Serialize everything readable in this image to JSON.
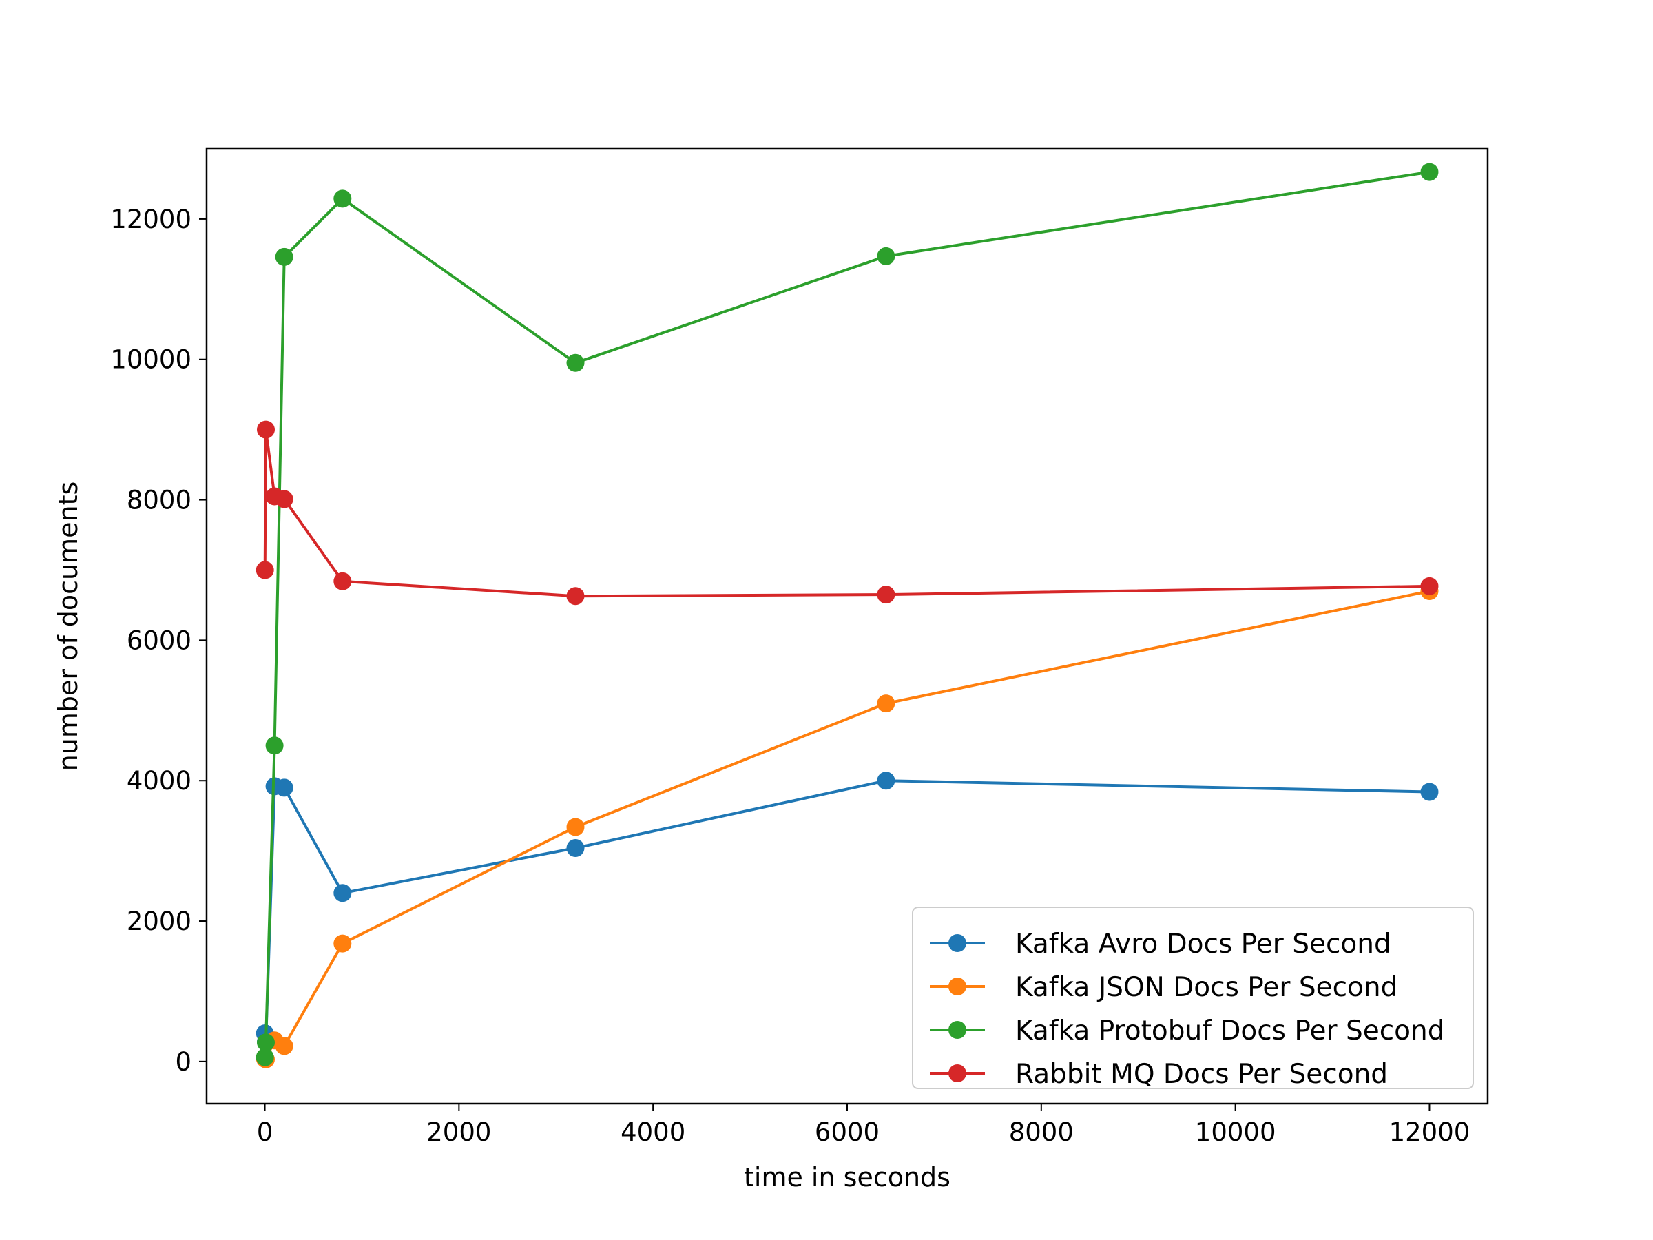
{
  "chart_data": {
    "type": "line",
    "title": "",
    "xlabel": "time in seconds",
    "ylabel": "number of documents",
    "xlim": [
      -600,
      12600
    ],
    "ylim": [
      -600,
      13000
    ],
    "xticks": [
      0,
      2000,
      4000,
      6000,
      8000,
      10000,
      12000
    ],
    "xtick_labels": [
      "0",
      "2000",
      "4000",
      "6000",
      "8000",
      "10000",
      "12000"
    ],
    "yticks": [
      0,
      2000,
      4000,
      6000,
      8000,
      10000,
      12000
    ],
    "ytick_labels": [
      "0",
      "2000",
      "4000",
      "6000",
      "8000",
      "10000",
      "12000"
    ],
    "grid": false,
    "legend_position": "lower-right",
    "x": [
      1,
      10,
      100,
      200,
      800,
      3200,
      6400,
      12000
    ],
    "series": [
      {
        "name": "Kafka Avro Docs Per Second",
        "color": "#1f77b4",
        "marker": "circle",
        "values": [
          400,
          280,
          3920,
          3900,
          2400,
          3040,
          4000,
          3840
        ]
      },
      {
        "name": "Kafka JSON Docs Per Second",
        "color": "#ff7f0e",
        "marker": "circle",
        "values": [
          40,
          30,
          300,
          220,
          1680,
          3340,
          5100,
          6700
        ]
      },
      {
        "name": "Kafka Protobuf Docs Per Second",
        "color": "#2ca02c",
        "marker": "circle",
        "values": [
          60,
          270,
          4500,
          11460,
          12290,
          9950,
          11470,
          12670
        ]
      },
      {
        "name": "Rabbit MQ Docs Per Second",
        "color": "#d62728",
        "marker": "circle",
        "values": [
          7000,
          9000,
          8050,
          8010,
          6840,
          6630,
          6650,
          6770
        ]
      }
    ]
  }
}
